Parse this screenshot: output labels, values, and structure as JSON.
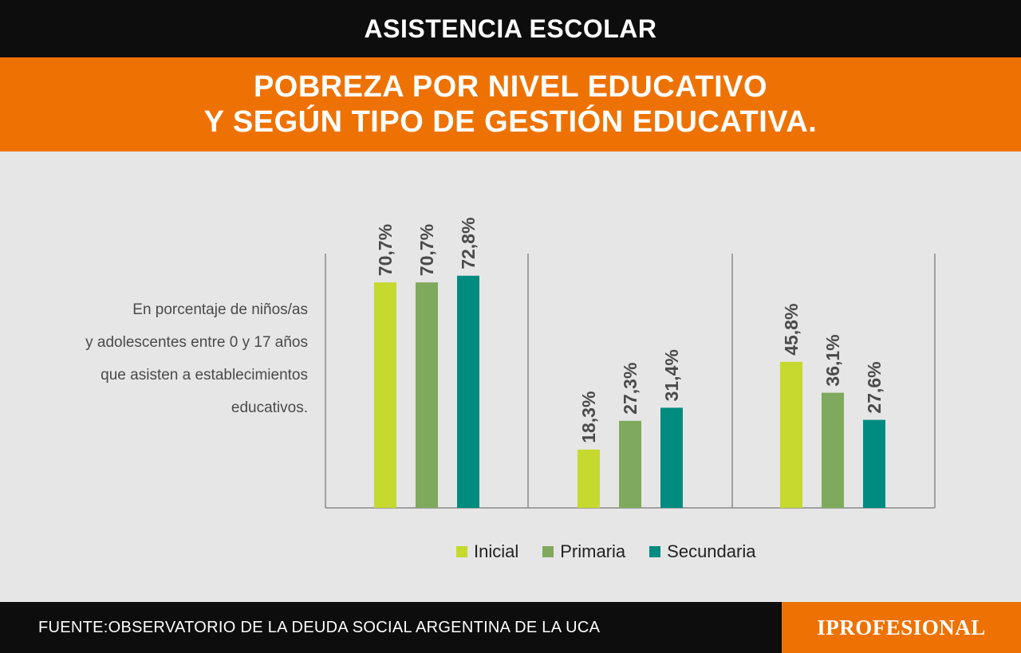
{
  "header": {
    "section": "ASISTENCIA ESCOLAR",
    "title_line1": "POBREZA POR NIVEL EDUCATIVO",
    "title_line2": "Y SEGÚN TIPO DE GESTIÓN EDUCATIVA."
  },
  "description": {
    "line1": "En porcentaje de niños/as",
    "line2": "y adolescentes entre 0 y 17 años",
    "line3": "que asisten a establecimientos",
    "line4": "educativos."
  },
  "chart_data": {
    "type": "bar",
    "title": "POBREZA POR NIVEL EDUCATIVO Y SEGÚN TIPO DE GESTIÓN EDUCATIVA.",
    "groups": 3,
    "ylim": [
      0,
      80
    ],
    "grid": false,
    "legend_position": "bottom",
    "series": [
      {
        "name": "Inicial",
        "color": "#c5d92e",
        "values": [
          70.7,
          18.3,
          45.8
        ],
        "labels": [
          "70,7%",
          "18,3%",
          "45,8%"
        ]
      },
      {
        "name": "Primaria",
        "color": "#7fa95c",
        "values": [
          70.7,
          27.3,
          36.1
        ],
        "labels": [
          "70,7%",
          "27,3%",
          "36,1%"
        ]
      },
      {
        "name": "Secundaria",
        "color": "#008b80",
        "values": [
          72.8,
          31.4,
          27.6
        ],
        "labels": [
          "72,8%",
          "31,4%",
          "27,6%"
        ]
      }
    ]
  },
  "legend": {
    "inicial": "Inicial",
    "primaria": "Primaria",
    "secundaria": "Secundaria"
  },
  "colors": {
    "orange": "#ee7203",
    "black": "#0d0d0d",
    "background": "#e6e6e6"
  },
  "footer": {
    "source": "FUENTE:OBSERVATORIO DE LA DEUDA SOCIAL ARGENTINA DE LA UCA",
    "brand": "IPROFESIONAL"
  }
}
